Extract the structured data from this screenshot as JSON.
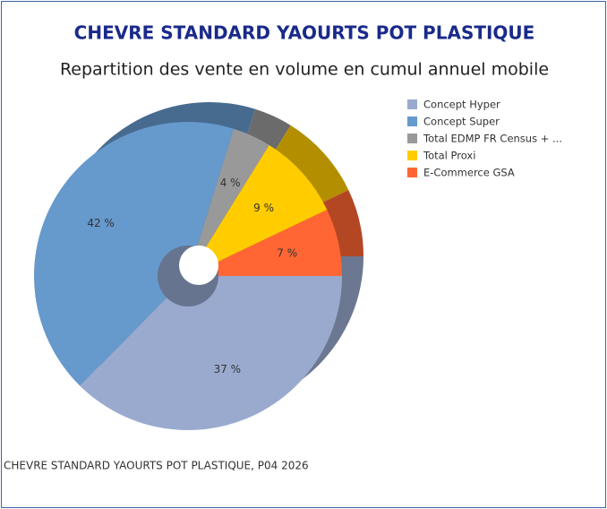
{
  "chart_data": {
    "type": "pie",
    "title": "CHEVRE STANDARD YAOURTS POT PLASTIQUE",
    "subtitle": "Repartition des vente en volume en cumul annuel mobile",
    "footer": "CHEVRE STANDARD YAOURTS POT PLASTIQUE, P04 2026",
    "categories": [
      "Concept Hyper",
      "Concept Super",
      "Total EDMP FR Census + ...",
      "Total Proxi",
      "E-Commerce GSA"
    ],
    "values": [
      37,
      42,
      4,
      9,
      7
    ],
    "value_labels": [
      "37 %",
      "42 %",
      "4 %",
      "9 %",
      "7 %"
    ],
    "colors": [
      "#9aaacf",
      "#6699cc",
      "#999999",
      "#ffcc00",
      "#ff6633"
    ],
    "legend": "right"
  }
}
